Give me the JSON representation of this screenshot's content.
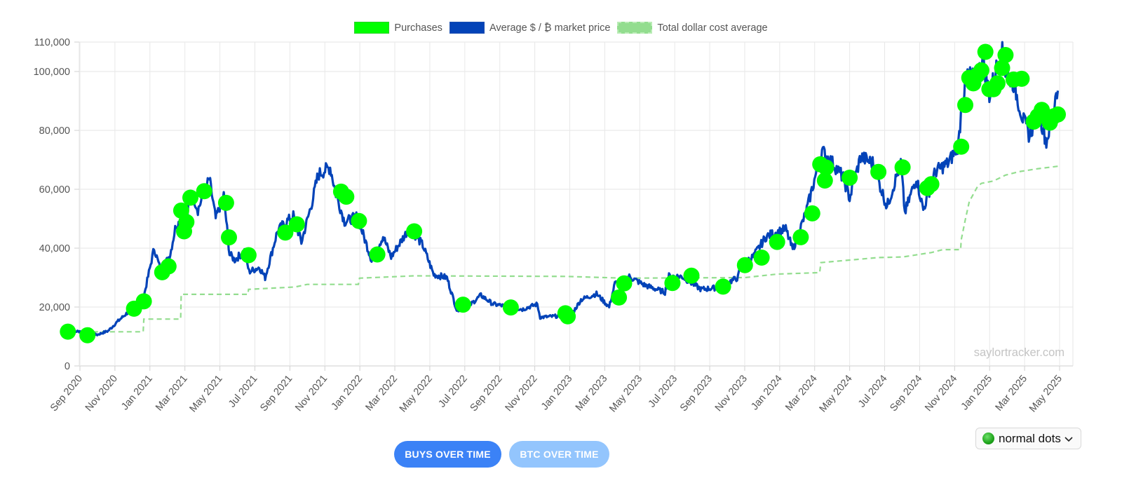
{
  "legend": {
    "purchases": "Purchases",
    "price": "Average $ / ₿ market price",
    "dca": "Total dollar cost average"
  },
  "watermark": "saylortracker.com",
  "buttons": {
    "buys_over_time": "BUYS OVER TIME",
    "btc_over_time": "BTC OVER TIME"
  },
  "dot_select": {
    "value": "normal dots",
    "icon": "green-circle-icon"
  },
  "colors": {
    "purchases": "#00ff00",
    "price": "#0343b8",
    "dca": "#93dd8f",
    "grid": "#e5e5e5",
    "button_active": "#3b82f6",
    "button_inactive": "#93c5fd"
  },
  "chart_data": {
    "type": "line",
    "title": "",
    "xlabel": "",
    "ylabel": "",
    "ylim": [
      0,
      110000
    ],
    "y_ticks": [
      0,
      20000,
      40000,
      60000,
      80000,
      100000,
      110000
    ],
    "y_tick_labels": [
      "0",
      "20,000",
      "40,000",
      "60,000",
      "80,000",
      "100,000",
      "110,000"
    ],
    "x_tick_labels": [
      "Sep 2020",
      "Nov 2020",
      "Jan 2021",
      "Mar 2021",
      "May 2021",
      "Jul 2021",
      "Sep 2021",
      "Nov 2021",
      "Jan 2022",
      "Mar 2022",
      "May 2022",
      "Jul 2022",
      "Sep 2022",
      "Nov 2022",
      "Jan 2023",
      "Mar 2023",
      "May 2023",
      "Jul 2023",
      "Sep 2023",
      "Nov 2023",
      "Jan 2024",
      "Mar 2024",
      "May 2024",
      "Jul 2024",
      "Sep 2024",
      "Nov 2024",
      "Jan 2025",
      "Mar 2025",
      "May 2025"
    ],
    "grid": true,
    "legend_position": "top",
    "series": [
      {
        "name": "Average $ / ₿ market price",
        "type": "line",
        "points": [
          [
            "2020-08-11",
            11500
          ],
          [
            "2020-09-01",
            11800
          ],
          [
            "2020-09-15",
            10700
          ],
          [
            "2020-10-01",
            10600
          ],
          [
            "2020-10-20",
            11900
          ],
          [
            "2020-11-05",
            15000
          ],
          [
            "2020-11-25",
            18500
          ],
          [
            "2020-12-10",
            18300
          ],
          [
            "2020-12-21",
            23500
          ],
          [
            "2021-01-08",
            40000
          ],
          [
            "2021-01-20",
            32000
          ],
          [
            "2021-02-05",
            38000
          ],
          [
            "2021-02-15",
            48000
          ],
          [
            "2021-02-24",
            49000
          ],
          [
            "2021-03-05",
            48000
          ],
          [
            "2021-03-13",
            60000
          ],
          [
            "2021-03-25",
            53000
          ],
          [
            "2021-04-14",
            63500
          ],
          [
            "2021-04-25",
            50000
          ],
          [
            "2021-05-09",
            58000
          ],
          [
            "2021-05-19",
            38000
          ],
          [
            "2021-05-28",
            36000
          ],
          [
            "2021-06-14",
            39000
          ],
          [
            "2021-06-22",
            32000
          ],
          [
            "2021-07-10",
            33500
          ],
          [
            "2021-07-20",
            30000
          ],
          [
            "2021-08-10",
            45500
          ],
          [
            "2021-08-20",
            48000
          ],
          [
            "2021-09-07",
            51000
          ],
          [
            "2021-09-21",
            42000
          ],
          [
            "2021-10-10",
            56000
          ],
          [
            "2021-10-20",
            65000
          ],
          [
            "2021-11-10",
            67500
          ],
          [
            "2021-11-20",
            58500
          ],
          [
            "2021-12-05",
            49000
          ],
          [
            "2021-12-27",
            50800
          ],
          [
            "2022-01-21",
            36000
          ],
          [
            "2022-02-10",
            44000
          ],
          [
            "2022-02-24",
            37000
          ],
          [
            "2022-03-28",
            47000
          ],
          [
            "2022-04-20",
            41000
          ],
          [
            "2022-05-09",
            31000
          ],
          [
            "2022-06-01",
            30000
          ],
          [
            "2022-06-18",
            19000
          ],
          [
            "2022-07-10",
            20500
          ],
          [
            "2022-07-30",
            24000
          ],
          [
            "2022-08-20",
            21000
          ],
          [
            "2022-09-13",
            20200
          ],
          [
            "2022-10-10",
            19200
          ],
          [
            "2022-11-05",
            21000
          ],
          [
            "2022-11-10",
            16500
          ],
          [
            "2022-12-15",
            17000
          ],
          [
            "2023-01-01",
            16600
          ],
          [
            "2023-01-20",
            22500
          ],
          [
            "2023-02-16",
            24500
          ],
          [
            "2023-03-10",
            20000
          ],
          [
            "2023-03-20",
            28000
          ],
          [
            "2023-04-14",
            30300
          ],
          [
            "2023-05-10",
            27500
          ],
          [
            "2023-06-15",
            25000
          ],
          [
            "2023-06-22",
            30500
          ],
          [
            "2023-07-15",
            30300
          ],
          [
            "2023-08-17",
            26000
          ],
          [
            "2023-09-15",
            26600
          ],
          [
            "2023-10-20",
            30000
          ],
          [
            "2023-10-25",
            34500
          ],
          [
            "2023-11-15",
            37000
          ],
          [
            "2023-12-08",
            44000
          ],
          [
            "2024-01-11",
            46500
          ],
          [
            "2024-01-23",
            39500
          ],
          [
            "2024-02-15",
            52000
          ],
          [
            "2024-03-14",
            73000
          ],
          [
            "2024-04-01",
            69000
          ],
          [
            "2024-04-20",
            64000
          ],
          [
            "2024-05-01",
            57000
          ],
          [
            "2024-05-20",
            71000
          ],
          [
            "2024-06-10",
            69000
          ],
          [
            "2024-07-05",
            54000
          ],
          [
            "2024-07-29",
            69000
          ],
          [
            "2024-08-05",
            52000
          ],
          [
            "2024-08-25",
            64000
          ],
          [
            "2024-09-06",
            53000
          ],
          [
            "2024-09-27",
            66000
          ],
          [
            "2024-10-20",
            69000
          ],
          [
            "2024-11-06",
            75000
          ],
          [
            "2024-11-12",
            89000
          ],
          [
            "2024-11-22",
            99000
          ],
          [
            "2024-12-10",
            97000
          ],
          [
            "2024-12-17",
            106000
          ],
          [
            "2024-12-30",
            92000
          ],
          [
            "2025-01-20",
            108000
          ],
          [
            "2025-01-27",
            100000
          ],
          [
            "2025-02-10",
            96000
          ],
          [
            "2025-02-26",
            84000
          ],
          [
            "2025-03-10",
            78000
          ],
          [
            "2025-03-25",
            87000
          ],
          [
            "2025-04-08",
            76000
          ],
          [
            "2025-04-21",
            87000
          ],
          [
            "2025-04-25",
            94000
          ],
          [
            "2025-04-28",
            93500
          ]
        ]
      },
      {
        "name": "Purchases",
        "type": "scatter",
        "points": [
          [
            "2020-08-11",
            11653
          ],
          [
            "2020-09-14",
            10419
          ],
          [
            "2020-12-04",
            19427
          ],
          [
            "2020-12-21",
            21925
          ],
          [
            "2021-01-22",
            31808
          ],
          [
            "2021-02-02",
            33810
          ],
          [
            "2021-02-24",
            52765
          ],
          [
            "2021-03-01",
            45710
          ],
          [
            "2021-03-05",
            48888
          ],
          [
            "2021-03-12",
            57146
          ],
          [
            "2021-04-05",
            59339
          ],
          [
            "2021-05-13",
            55387
          ],
          [
            "2021-05-18",
            43663
          ],
          [
            "2021-06-21",
            37617
          ],
          [
            "2021-08-24",
            45294
          ],
          [
            "2021-09-13",
            48099
          ],
          [
            "2021-11-29",
            59187
          ],
          [
            "2021-12-08",
            57477
          ],
          [
            "2021-12-30",
            49229
          ],
          [
            "2022-01-31",
            37865
          ],
          [
            "2022-04-05",
            45714
          ],
          [
            "2022-06-29",
            20817
          ],
          [
            "2022-09-20",
            19851
          ],
          [
            "2022-12-24",
            17871
          ],
          [
            "2022-12-28",
            16845
          ],
          [
            "2023-03-27",
            23238
          ],
          [
            "2023-04-05",
            28016
          ],
          [
            "2023-06-28",
            28136
          ],
          [
            "2023-07-31",
            30663
          ],
          [
            "2023-09-24",
            26919
          ],
          [
            "2023-11-01",
            34213
          ],
          [
            "2023-11-30",
            36785
          ],
          [
            "2023-12-27",
            42110
          ],
          [
            "2024-02-06",
            43723
          ],
          [
            "2024-02-26",
            51813
          ],
          [
            "2024-03-11",
            68477
          ],
          [
            "2024-03-19",
            62987
          ],
          [
            "2024-03-21",
            67382
          ],
          [
            "2024-05-01",
            63923
          ],
          [
            "2024-06-20",
            65883
          ],
          [
            "2024-08-01",
            67455
          ],
          [
            "2024-09-13",
            60408
          ],
          [
            "2024-09-20",
            61750
          ],
          [
            "2024-11-11",
            74463
          ],
          [
            "2024-11-18",
            88627
          ],
          [
            "2024-11-25",
            97862
          ],
          [
            "2024-12-02",
            95976
          ],
          [
            "2024-12-09",
            98783
          ],
          [
            "2024-12-16",
            100386
          ],
          [
            "2024-12-23",
            106662
          ],
          [
            "2024-12-30",
            94004
          ],
          [
            "2025-01-06",
            94004
          ],
          [
            "2025-01-13",
            95972
          ],
          [
            "2025-01-21",
            101191
          ],
          [
            "2025-01-27",
            105596
          ],
          [
            "2025-02-10",
            97255
          ],
          [
            "2025-02-24",
            97514
          ],
          [
            "2025-03-17",
            82981
          ],
          [
            "2025-03-24",
            84785
          ],
          [
            "2025-03-31",
            86969
          ],
          [
            "2025-04-14",
            82618
          ],
          [
            "2025-04-21",
            84785
          ],
          [
            "2025-04-28",
            85400
          ]
        ]
      },
      {
        "name": "Total dollar cost average",
        "type": "line-step-dashed",
        "points": [
          [
            "2020-08-11",
            11600
          ],
          [
            "2020-12-20",
            11600
          ],
          [
            "2020-12-21",
            15900
          ],
          [
            "2021-02-23",
            15900
          ],
          [
            "2021-02-24",
            24300
          ],
          [
            "2021-06-20",
            24300
          ],
          [
            "2021-06-21",
            26000
          ],
          [
            "2021-09-10",
            26800
          ],
          [
            "2021-10-01",
            27700
          ],
          [
            "2021-12-29",
            27700
          ],
          [
            "2021-12-31",
            29800
          ],
          [
            "2022-04-05",
            30600
          ],
          [
            "2022-12-24",
            30400
          ],
          [
            "2023-04-05",
            29800
          ],
          [
            "2023-11-01",
            30000
          ],
          [
            "2023-12-27",
            31200
          ],
          [
            "2024-03-10",
            31700
          ],
          [
            "2024-03-12",
            35100
          ],
          [
            "2024-06-20",
            36800
          ],
          [
            "2024-08-01",
            37000
          ],
          [
            "2024-09-20",
            38500
          ],
          [
            "2024-10-10",
            39500
          ],
          [
            "2024-11-10",
            39500
          ],
          [
            "2024-11-11",
            42800
          ],
          [
            "2024-11-18",
            49600
          ],
          [
            "2024-11-25",
            55800
          ],
          [
            "2024-12-09",
            60800
          ],
          [
            "2024-12-16",
            62000
          ],
          [
            "2025-01-06",
            62800
          ],
          [
            "2025-01-27",
            64800
          ],
          [
            "2025-02-20",
            66000
          ],
          [
            "2025-03-25",
            67000
          ],
          [
            "2025-04-28",
            67800
          ]
        ]
      }
    ]
  }
}
